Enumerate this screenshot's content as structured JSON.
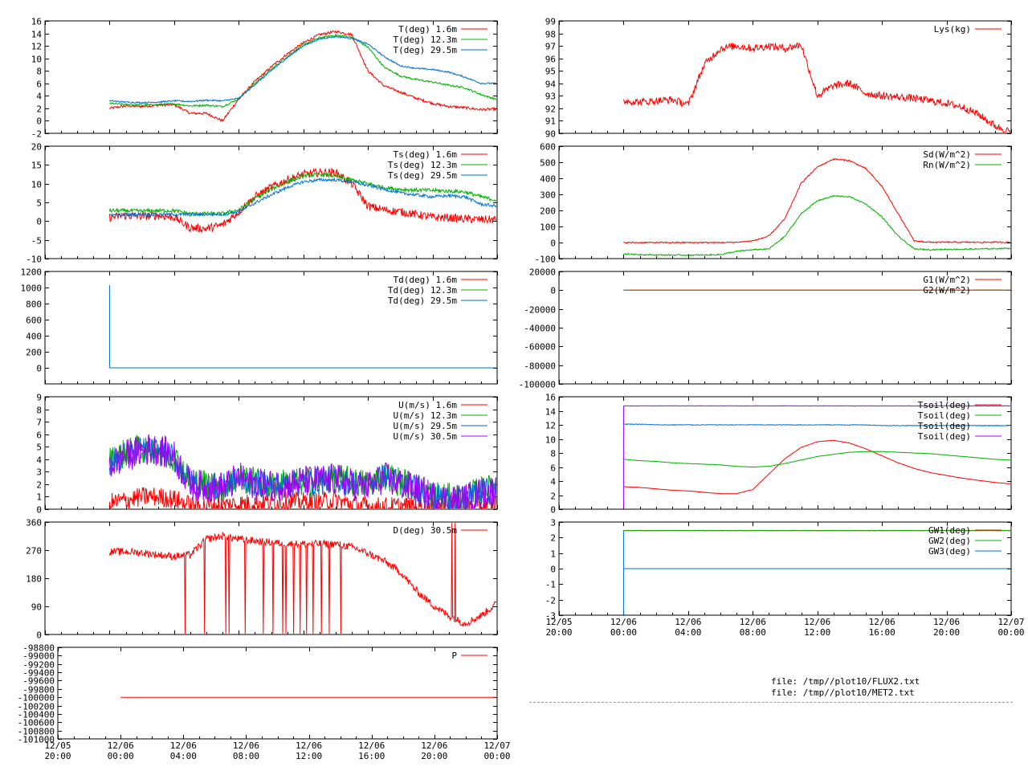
{
  "colors": {
    "red": "#ff0000",
    "green": "#00b000",
    "blue": "#0070d8",
    "purple": "#a000f0",
    "brown": "#9a5a00"
  },
  "footer": {
    "line1": "file: /tmp//plot10/FLUX2.txt",
    "line2": "file: /tmp//plot10/MET2.txt"
  },
  "chart_data": [
    {
      "id": "T",
      "type": "line",
      "ylim": [
        -2,
        16
      ],
      "yticks": [
        "-2",
        "0",
        "2",
        "4",
        "6",
        "8",
        "10",
        "12",
        "14",
        "16"
      ],
      "x_hours": [
        0,
        1,
        2,
        3,
        4,
        5,
        6,
        7,
        8,
        9,
        10,
        11,
        12,
        13,
        14,
        15,
        16,
        17,
        18,
        19,
        20,
        21,
        22,
        23,
        24
      ],
      "series": [
        {
          "name": "T(deg)  1.6m",
          "color": "red",
          "noise": 0.2,
          "values": [
            2.0,
            2.4,
            2.3,
            2.5,
            2.6,
            1.2,
            1.2,
            0.0,
            3.5,
            6.3,
            8.6,
            10.7,
            12.5,
            13.8,
            14.3,
            13.8,
            8.0,
            5.6,
            4.6,
            3.6,
            2.8,
            2.3,
            2.1,
            1.8,
            1.9
          ]
        },
        {
          "name": "T(deg) 12.3m",
          "color": "green",
          "noise": 0.15,
          "values": [
            2.8,
            2.6,
            2.5,
            2.6,
            2.7,
            2.4,
            2.5,
            2.3,
            3.5,
            6.0,
            8.2,
            10.3,
            12.2,
            13.3,
            13.7,
            13.4,
            11.8,
            8.6,
            7.2,
            6.6,
            6.2,
            5.7,
            5.3,
            4.2,
            3.4
          ]
        },
        {
          "name": "T(deg) 29.5m",
          "color": "blue",
          "noise": 0.12,
          "values": [
            3.2,
            3.0,
            2.9,
            3.0,
            3.2,
            3.1,
            3.3,
            3.2,
            3.6,
            5.8,
            8.0,
            10.1,
            12.0,
            13.1,
            13.5,
            13.2,
            12.3,
            10.3,
            8.8,
            8.4,
            8.2,
            7.8,
            7.0,
            6.0,
            6.0
          ]
        }
      ]
    },
    {
      "id": "Ts",
      "type": "line",
      "ylim": [
        -10,
        20
      ],
      "yticks": [
        "-10",
        "-5",
        "0",
        "5",
        "10",
        "15",
        "20"
      ],
      "x_hours": [
        0,
        1,
        2,
        3,
        4,
        5,
        6,
        7,
        8,
        9,
        10,
        11,
        12,
        13,
        14,
        15,
        16,
        17,
        18,
        19,
        20,
        21,
        22,
        23,
        24
      ],
      "series": [
        {
          "name": "Ts(deg)  1.6m",
          "color": "red",
          "noise": 1.1,
          "values": [
            1.0,
            1.5,
            1.3,
            1.5,
            1.0,
            -1.8,
            -2.0,
            -1.0,
            2.5,
            6.5,
            9.0,
            11.0,
            12.5,
            13.0,
            13.0,
            10.0,
            4.0,
            3.0,
            2.5,
            1.8,
            1.0,
            0.9,
            0.6,
            0.4,
            0.4
          ]
        },
        {
          "name": "Ts(deg) 12.3m",
          "color": "green",
          "noise": 0.5,
          "values": [
            2.8,
            2.8,
            2.7,
            2.8,
            2.8,
            2.0,
            2.0,
            2.0,
            3.0,
            6.0,
            8.5,
            10.5,
            12.0,
            12.5,
            12.0,
            11.0,
            10.0,
            9.0,
            8.5,
            8.3,
            8.2,
            8.0,
            7.8,
            6.5,
            5.5
          ]
        },
        {
          "name": "Ts(deg) 29.5m",
          "color": "blue",
          "noise": 0.4,
          "values": [
            1.6,
            1.7,
            1.8,
            1.8,
            1.8,
            1.7,
            1.8,
            1.8,
            2.5,
            4.8,
            7.0,
            9.0,
            10.5,
            11.0,
            11.0,
            10.5,
            9.5,
            8.5,
            7.5,
            7.0,
            6.5,
            6.8,
            6.5,
            4.5,
            4.0
          ]
        }
      ]
    },
    {
      "id": "Td",
      "type": "line",
      "ylim": [
        -200,
        1200
      ],
      "yticks": [
        "0",
        "200",
        "400",
        "600",
        "800",
        "1000",
        "1200"
      ],
      "spike": {
        "x_hour": 0.0,
        "value": 1030
      },
      "x_hours": [
        0,
        24
      ],
      "series": [
        {
          "name": "Td(deg)  1.6m",
          "color": "red",
          "noise": 0,
          "values": [
            0,
            0
          ]
        },
        {
          "name": "Td(deg) 12.3m",
          "color": "green",
          "noise": 0,
          "values": [
            0,
            0
          ]
        },
        {
          "name": "Td(deg) 29.5m",
          "color": "blue",
          "noise": 0,
          "values": [
            0,
            0
          ]
        }
      ]
    },
    {
      "id": "U",
      "type": "line",
      "ylim": [
        0,
        9
      ],
      "yticks": [
        "0",
        "1",
        "2",
        "3",
        "4",
        "5",
        "6",
        "7",
        "8",
        "9"
      ],
      "x_hours": [
        0,
        1,
        2,
        3,
        4,
        5,
        6,
        7,
        8,
        9,
        10,
        11,
        12,
        13,
        14,
        15,
        16,
        17,
        18,
        19,
        20,
        21,
        22,
        23,
        24
      ],
      "series": [
        {
          "name": "U(m/s)  1.6m",
          "color": "red",
          "noise": 0.8,
          "values": [
            0.5,
            0.7,
            1.0,
            1.0,
            0.8,
            0.3,
            0.3,
            0.3,
            0.4,
            0.5,
            0.6,
            0.6,
            0.6,
            0.6,
            0.7,
            0.4,
            0.2,
            0.2,
            0.2,
            0.2,
            0.2,
            0.2,
            0.3,
            0.3,
            0.4
          ]
        },
        {
          "name": "U(m/s) 12.3m",
          "color": "green",
          "noise": 1.2,
          "values": [
            3.8,
            4.5,
            4.8,
            4.8,
            4.2,
            2.2,
            2.0,
            1.8,
            2.5,
            2.2,
            2.0,
            2.1,
            2.2,
            2.3,
            2.5,
            2.2,
            2.0,
            2.8,
            2.2,
            1.8,
            1.2,
            0.9,
            0.9,
            1.5,
            1.6
          ]
        },
        {
          "name": "U(m/s) 29.5m",
          "color": "blue",
          "noise": 1.1,
          "values": [
            3.7,
            4.4,
            4.7,
            4.7,
            4.1,
            2.1,
            1.9,
            1.7,
            2.4,
            2.1,
            1.9,
            2.0,
            2.1,
            2.2,
            2.4,
            2.1,
            1.9,
            2.6,
            2.1,
            1.7,
            1.1,
            0.8,
            0.8,
            1.4,
            1.5
          ]
        },
        {
          "name": "U(m/s) 30.5m",
          "color": "purple",
          "noise": 1.3,
          "values": [
            3.5,
            4.3,
            4.7,
            4.8,
            4.2,
            2.0,
            1.8,
            1.7,
            2.5,
            2.0,
            1.9,
            2.0,
            2.2,
            2.3,
            2.4,
            2.0,
            1.8,
            2.5,
            2.0,
            1.6,
            1.0,
            0.7,
            0.8,
            1.3,
            1.6
          ]
        }
      ]
    },
    {
      "id": "D",
      "type": "line",
      "ylim": [
        0,
        360
      ],
      "yticks": [
        "0",
        "90",
        "180",
        "270",
        "360"
      ],
      "x_hours": [
        0,
        1,
        2,
        3,
        4,
        5,
        6,
        7,
        8,
        9,
        10,
        11,
        12,
        13,
        14,
        15,
        16,
        17,
        18,
        19,
        20,
        21,
        22,
        23,
        24
      ],
      "dropouts": [
        4.7,
        5.9,
        7.2,
        7.4,
        8.4,
        9.5,
        10.1,
        10.7,
        10.9,
        11.4,
        11.8,
        12.2,
        12.6,
        13.1,
        13.6,
        14.3
      ],
      "spikes": [
        21.2,
        21.4
      ],
      "series": [
        {
          "name": "D(deg)  30.5m",
          "color": "red",
          "noise": 12,
          "values": [
            265,
            265,
            262,
            255,
            250,
            255,
            305,
            315,
            305,
            300,
            295,
            290,
            290,
            290,
            290,
            280,
            260,
            235,
            200,
            140,
            95,
            60,
            35,
            60,
            100
          ]
        }
      ]
    },
    {
      "id": "P",
      "type": "line",
      "ylim": [
        -101000,
        -98800
      ],
      "yticks": [
        "-101000",
        "-100800",
        "-100600",
        "-100400",
        "-100200",
        "-100000",
        "-99800",
        "-99600",
        "-99400",
        "-99200",
        "-99000",
        "-98800"
      ],
      "x_hours": [
        0,
        24
      ],
      "series": [
        {
          "name": "P",
          "color": "red",
          "noise": 0,
          "values": [
            -100000,
            -100000
          ]
        }
      ]
    },
    {
      "id": "Lys",
      "type": "line",
      "ylim": [
        90,
        99
      ],
      "yticks": [
        "90",
        "91",
        "92",
        "93",
        "94",
        "95",
        "96",
        "97",
        "98",
        "99"
      ],
      "x_hours": [
        0,
        1,
        2,
        3,
        4,
        5,
        6,
        7,
        8,
        9,
        10,
        11,
        12,
        13,
        14,
        15,
        16,
        17,
        18,
        19,
        20,
        21,
        22,
        23,
        24
      ],
      "series": [
        {
          "name": "Lys(kg)",
          "color": "red",
          "noise": 0.3,
          "values": [
            92.6,
            92.5,
            92.6,
            92.7,
            92.3,
            95.5,
            96.8,
            97.0,
            96.8,
            97.0,
            96.8,
            97.1,
            93.0,
            93.8,
            94.0,
            93.2,
            93.0,
            92.9,
            92.8,
            92.6,
            92.4,
            92.1,
            91.5,
            90.6,
            90.1
          ]
        }
      ]
    },
    {
      "id": "Sd",
      "type": "line",
      "ylim": [
        -100,
        600
      ],
      "yticks": [
        "-100",
        "0",
        "100",
        "200",
        "300",
        "400",
        "500",
        "600"
      ],
      "x_hours": [
        0,
        1,
        2,
        3,
        4,
        5,
        6,
        7,
        8,
        9,
        10,
        11,
        12,
        13,
        14,
        15,
        16,
        17,
        18,
        19,
        20,
        21,
        22,
        23,
        24
      ],
      "series": [
        {
          "name": "Sd(W/m^2)",
          "color": "red",
          "noise": 4,
          "values": [
            0,
            0,
            0,
            0,
            0,
            0,
            0,
            2,
            10,
            40,
            150,
            370,
            470,
            520,
            510,
            460,
            350,
            180,
            10,
            2,
            2,
            2,
            2,
            2,
            2
          ]
        },
        {
          "name": "Rn(W/m^2)",
          "color": "green",
          "noise": 4,
          "values": [
            -70,
            -75,
            -77,
            -78,
            -78,
            -78,
            -75,
            -55,
            -45,
            -40,
            40,
            180,
            260,
            290,
            285,
            240,
            160,
            40,
            -40,
            -45,
            -42,
            -42,
            -40,
            -38,
            -35
          ]
        }
      ]
    },
    {
      "id": "G",
      "type": "line",
      "ylim": [
        -100000,
        20000
      ],
      "yticks": [
        "-100000",
        "-80000",
        "-60000",
        "-40000",
        "-20000",
        "0",
        "20000"
      ],
      "x_hours": [
        0,
        24
      ],
      "series": [
        {
          "name": "G1(W/m^2)",
          "color": "red",
          "noise": 0,
          "values": [
            0,
            0
          ]
        },
        {
          "name": "G2(W/m^2)",
          "color": "brown",
          "noise": 0,
          "values": [
            0,
            0
          ]
        }
      ]
    },
    {
      "id": "Tsoil",
      "type": "line",
      "ylim": [
        0,
        16
      ],
      "yticks": [
        "0",
        "2",
        "4",
        "6",
        "8",
        "10",
        "12",
        "14",
        "16"
      ],
      "x_hours": [
        0,
        1,
        2,
        3,
        4,
        5,
        6,
        7,
        8,
        9,
        10,
        11,
        12,
        13,
        14,
        15,
        16,
        17,
        18,
        19,
        20,
        21,
        22,
        23,
        24
      ],
      "series": [
        {
          "name": "Tsoil(deg)",
          "color": "red",
          "noise": 0.02,
          "values": [
            3.2,
            3.1,
            2.9,
            2.7,
            2.6,
            2.4,
            2.2,
            2.2,
            2.8,
            5.0,
            7.2,
            8.8,
            9.6,
            9.8,
            9.4,
            8.6,
            7.6,
            6.6,
            5.8,
            5.2,
            4.8,
            4.4,
            4.1,
            3.8,
            3.6
          ]
        },
        {
          "name": "Tsoil(deg)",
          "color": "green",
          "noise": 0.02,
          "values": [
            7.1,
            6.9,
            6.8,
            6.6,
            6.5,
            6.4,
            6.3,
            6.1,
            6.0,
            6.1,
            6.5,
            7.0,
            7.5,
            7.8,
            8.1,
            8.2,
            8.2,
            8.1,
            8.0,
            7.9,
            7.7,
            7.5,
            7.3,
            7.1,
            7.0
          ]
        },
        {
          "name": "Tsoil(deg)",
          "color": "blue",
          "noise": 0.05,
          "values": [
            12.1,
            12.1,
            12.0,
            12.0,
            12.0,
            12.0,
            12.0,
            12.0,
            12.0,
            12.0,
            12.0,
            12.0,
            12.0,
            12.0,
            12.0,
            12.0,
            11.9,
            11.9,
            11.9,
            11.9,
            11.9,
            11.9,
            11.9,
            11.9,
            11.9
          ]
        },
        {
          "name": "Tsoil(deg)",
          "color": "purple",
          "noise": 0.03,
          "values": [
            14.7,
            14.7,
            14.7,
            14.7,
            14.7,
            14.7,
            14.7,
            14.7,
            14.7,
            14.7,
            14.7,
            14.7,
            14.7,
            14.7,
            14.7,
            14.7,
            14.7,
            14.7,
            14.7,
            14.7,
            14.7,
            14.7,
            14.7,
            14.7,
            14.7
          ]
        }
      ]
    },
    {
      "id": "GW",
      "type": "line",
      "ylim": [
        -3,
        3
      ],
      "yticks": [
        "-3",
        "-2",
        "-1",
        "0",
        "1",
        "2",
        "3"
      ],
      "xlabels": [
        "12/05\n20:00",
        "12/06\n00:00",
        "12/06\n04:00",
        "12/06\n08:00",
        "12/06\n12:00",
        "12/06\n16:00",
        "12/06\n20:00",
        "12/07\n00:00"
      ],
      "x_hours": [
        0,
        24
      ],
      "series": [
        {
          "name": "GW1(deg)",
          "color": "red",
          "noise": 0,
          "values": [
            2.45,
            2.45
          ]
        },
        {
          "name": "GW2(deg)",
          "color": "green",
          "noise": 0.02,
          "values": [
            2.45,
            2.45
          ]
        },
        {
          "name": "GW3(deg)",
          "color": "blue",
          "noise": 0,
          "values": [
            0,
            0
          ]
        }
      ]
    }
  ]
}
